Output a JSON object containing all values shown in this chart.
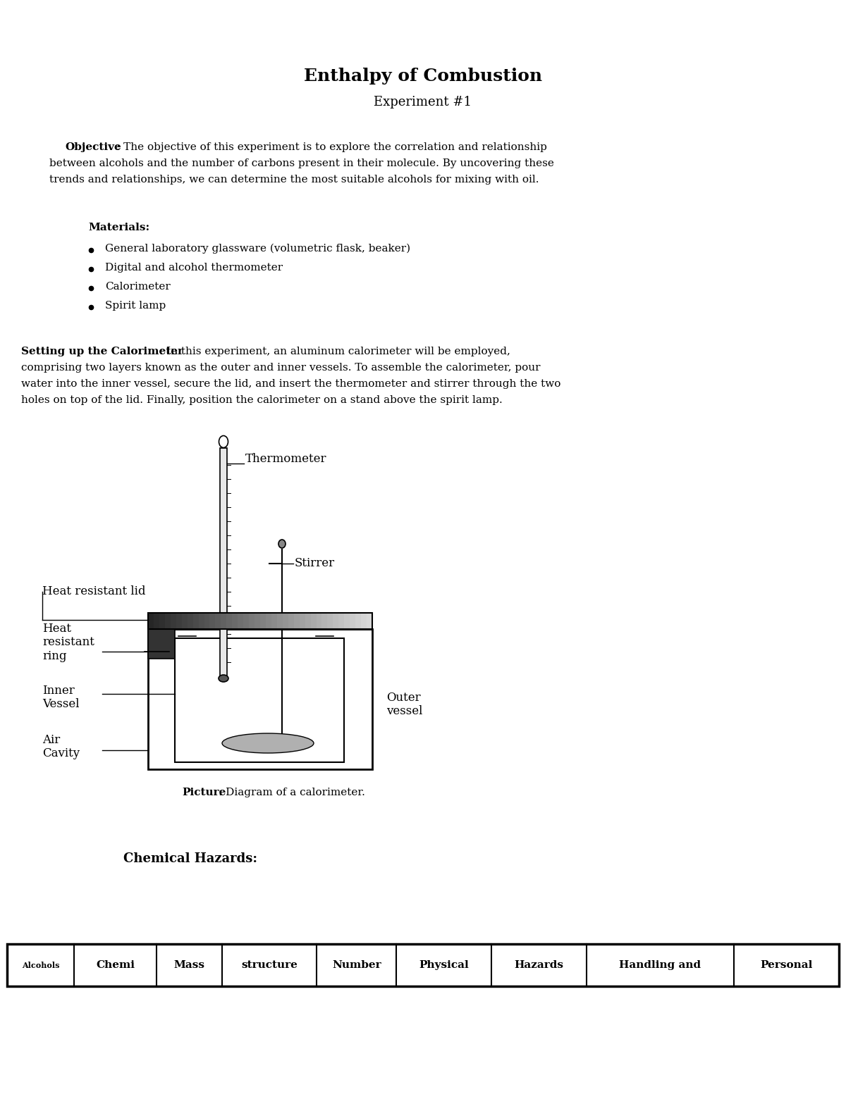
{
  "title": "Enthalpy of Combustion",
  "subtitle": "Experiment #1",
  "objective_label": "Objective",
  "objective_text_after": ": The objective of this experiment is to explore the correlation and relationship\nbetween alcohols and the number of carbons present in their molecule. By uncovering these\ntrends and relationships, we can determine the most suitable alcohols for mixing with oil.",
  "materials_label": "Materials",
  "materials_items": [
    "General laboratory glassware (volumetric flask, beaker)",
    "Digital and alcohol thermometer",
    "Calorimeter",
    "Spirit lamp"
  ],
  "setting_label": "Setting up the Calorimeter",
  "setting_text_after": ": In this experiment, an aluminum calorimeter will be employed,\ncomprising two layers known as the outer and inner vessels. To assemble the calorimeter, pour\nwater into the inner vessel, secure the lid, and insert the thermometer and stirrer through the two\nholes on top of the lid. Finally, position the calorimeter on a stand above the spirit lamp.",
  "picture_label": "Picture",
  "picture_text": ": Diagram of a calorimeter.",
  "chemical_hazards_label": "Chemical Hazards:",
  "table_headers": [
    "Alcohols",
    "Chemi",
    "Mass",
    "structure",
    "Number",
    "Physical",
    "Hazards",
    "Handling and",
    "Personal"
  ],
  "table_header_small": "Alcohols",
  "bg_color": "#ffffff",
  "text_color": "#000000",
  "font_family": "DejaVu Serif"
}
